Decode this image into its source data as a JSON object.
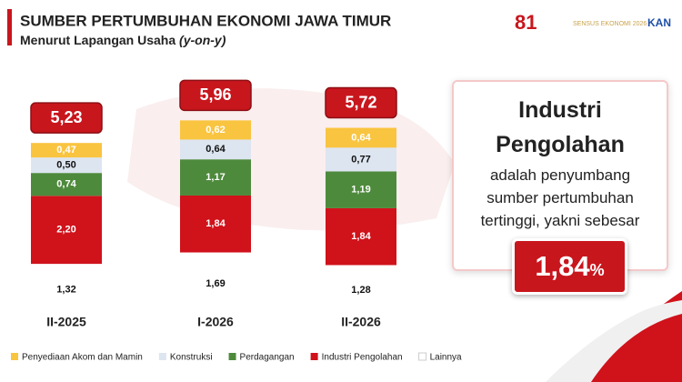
{
  "chart_data": {
    "type": "stacked_bar",
    "title": "SUMBER PERTUMBUHAN EKONOMI JAWA TIMUR",
    "subtitle": "Menurut Lapangan Usaha",
    "subtitle_note": "(y-on-y)",
    "logos": [
      "81",
      "SENSUS EKONOMI 2026",
      "KAN"
    ],
    "categories": [
      "II-2025",
      "I-2026",
      "II-2026"
    ],
    "series": [
      {
        "name": "Penyediaan Akom dan Mamin",
        "color": "#f9c440",
        "label_color": "#ffffff",
        "values": [
          0.47,
          0.62,
          0.64
        ],
        "value_labels": [
          "0,47",
          "0,62",
          "0,64"
        ]
      },
      {
        "name": "Konstruksi",
        "color": "#dde5f0",
        "label_color": "#111111",
        "values": [
          0.5,
          0.64,
          0.77
        ],
        "value_labels": [
          "0,50",
          "0,64",
          "0,77"
        ]
      },
      {
        "name": "Perdagangan",
        "color": "#4e8a3c",
        "label_color": "#ffffff",
        "values": [
          0.74,
          1.17,
          1.19
        ],
        "value_labels": [
          "0,74",
          "1,17",
          "1,19"
        ]
      },
      {
        "name": "Industri Pengolahan",
        "color": "#d0121b",
        "label_color": "#ffffff",
        "values": [
          2.2,
          1.84,
          1.84
        ],
        "value_labels": [
          "2,20",
          "1,84",
          "1,84"
        ]
      },
      {
        "name": "Lainnya",
        "color": "#ffffff",
        "label_color": "#111111",
        "values": [
          1.32,
          1.69,
          1.28
        ],
        "value_labels": [
          "1,32",
          "1,69",
          "1,28"
        ]
      }
    ],
    "totals": [
      5.23,
      5.96,
      5.72
    ],
    "total_labels": [
      "5,23",
      "5,96",
      "5,72"
    ],
    "highlight": {
      "title": "Industri Pengolahan",
      "text": "adalah penyumbang sumber pertumbuhan tertinggi, yakni sebesar",
      "label": "1,84",
      "unit": "%"
    }
  }
}
